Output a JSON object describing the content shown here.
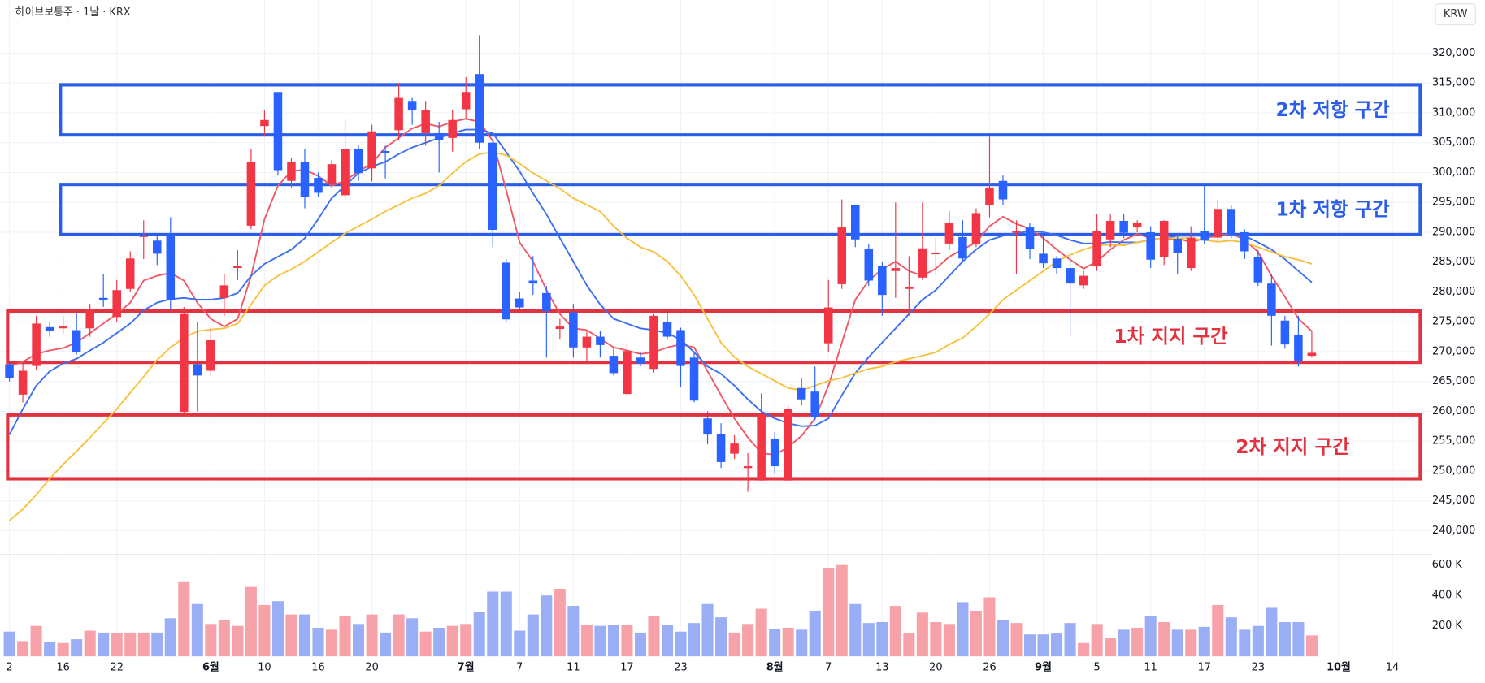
{
  "header": {
    "symbol": "하이브보통주 · 1날 · KRX",
    "currency": "KRW"
  },
  "chart_data": {
    "type": "candlestick",
    "xlim": [
      -0.7,
      106
    ],
    "xticks": [
      {
        "value": 0,
        "label": "2"
      },
      {
        "value": 4,
        "label": "16"
      },
      {
        "value": 8,
        "label": "22"
      },
      {
        "value": 15,
        "label": "6월"
      },
      {
        "value": 19,
        "label": "10"
      },
      {
        "value": 23,
        "label": "16"
      },
      {
        "value": 27,
        "label": "20"
      },
      {
        "value": 34,
        "label": "7월"
      },
      {
        "value": 38,
        "label": "7"
      },
      {
        "value": 42,
        "label": "11"
      },
      {
        "value": 46,
        "label": "17"
      },
      {
        "value": 50,
        "label": "23"
      },
      {
        "value": 57,
        "label": "8월"
      },
      {
        "value": 61,
        "label": "7"
      },
      {
        "value": 65,
        "label": "13"
      },
      {
        "value": 69,
        "label": "20"
      },
      {
        "value": 73,
        "label": "26"
      },
      {
        "value": 77,
        "label": "9월"
      },
      {
        "value": 81,
        "label": "5"
      },
      {
        "value": 85,
        "label": "11"
      },
      {
        "value": 89,
        "label": "17"
      },
      {
        "value": 93,
        "label": "23"
      },
      {
        "value": 99,
        "label": "10월"
      },
      {
        "value": 103,
        "label": "14"
      }
    ],
    "ylim": [
      236000,
      328900
    ],
    "yticks": [
      {
        "value": 240000,
        "label": "240,000"
      },
      {
        "value": 245000,
        "label": "245,000"
      },
      {
        "value": 250000,
        "label": "250,000"
      },
      {
        "value": 255000,
        "label": "255,000"
      },
      {
        "value": 260000,
        "label": "260,000"
      },
      {
        "value": 265000,
        "label": "265,000"
      },
      {
        "value": 270000,
        "label": "270,000"
      },
      {
        "value": 275000,
        "label": "275,000"
      },
      {
        "value": 280000,
        "label": "280,000"
      },
      {
        "value": 285000,
        "label": "285,000"
      },
      {
        "value": 290000,
        "label": "290,000"
      },
      {
        "value": 295000,
        "label": "295,000"
      },
      {
        "value": 300000,
        "label": "300,000"
      },
      {
        "value": 305000,
        "label": "305,000"
      },
      {
        "value": 310000,
        "label": "310,000"
      },
      {
        "value": 315000,
        "label": "315,000"
      },
      {
        "value": 320000,
        "label": "320,000"
      }
    ],
    "grid": true,
    "up_color": "#f23645",
    "down_color": "#2962ff",
    "open": [
      267900,
      262800,
      267600,
      274100,
      273900,
      273600,
      273900,
      279000,
      275800,
      280500,
      289200,
      288600,
      289400,
      259900,
      267900,
      266800,
      279000,
      284000,
      291100,
      307800,
      313500,
      298600,
      301800,
      299100,
      298200,
      296200,
      303900,
      300700,
      303600,
      307100,
      312000,
      306600,
      306600,
      305800,
      310600,
      316500,
      305000,
      284900,
      278900,
      281900,
      279800,
      273800,
      276600,
      270700,
      272500,
      269300,
      262900,
      269000,
      267100,
      274900,
      273600,
      269000,
      258800,
      256200,
      252900,
      250500,
      248400,
      255300,
      248400,
      263900,
      263300,
      271400,
      281300,
      294500,
      287200,
      284300,
      283500,
      280500,
      282400,
      286400,
      288100,
      289200,
      288000,
      294500,
      298600,
      289900,
      290800,
      286400,
      285600,
      284000,
      281100,
      284300,
      288800,
      291900,
      290800,
      290000,
      285900,
      288900,
      284000,
      290200,
      289100,
      293900,
      290000,
      285900,
      281400,
      275200,
      272800,
      269300
    ],
    "high": [
      268500,
      268000,
      276000,
      275000,
      276000,
      276500,
      278000,
      283000,
      282000,
      286800,
      292000,
      289500,
      292500,
      277500,
      275000,
      274000,
      283000,
      287000,
      304000,
      310500,
      313500,
      302500,
      304000,
      300000,
      302000,
      308800,
      304500,
      308000,
      304500,
      315000,
      312500,
      312000,
      308500,
      310500,
      316000,
      323000,
      305500,
      285500,
      280000,
      286000,
      281000,
      275500,
      278000,
      273500,
      273500,
      270500,
      271500,
      270000,
      276300,
      277000,
      274000,
      270000,
      260000,
      258000,
      256000,
      253000,
      263000,
      256500,
      261000,
      265500,
      267500,
      282000,
      295500,
      294500,
      288000,
      285000,
      295000,
      286000,
      295000,
      289000,
      293500,
      292000,
      294000,
      306000,
      299500,
      292000,
      291500,
      289500,
      286000,
      286000,
      283500,
      293000,
      293000,
      293000,
      292000,
      291000,
      292000,
      289500,
      291000,
      298000,
      295500,
      294500,
      290500,
      287000,
      283000,
      276000,
      276000,
      273500
    ],
    "low": [
      265000,
      261500,
      267000,
      272500,
      273000,
      269500,
      272500,
      277500,
      275000,
      280000,
      285500,
      284500,
      277000,
      259500,
      260000,
      266000,
      276000,
      282000,
      290500,
      306000,
      299500,
      297500,
      294000,
      296000,
      297500,
      295500,
      298600,
      298500,
      299000,
      305500,
      308000,
      304500,
      300000,
      303500,
      309000,
      304000,
      287500,
      275000,
      276500,
      279500,
      269000,
      272000,
      269000,
      268500,
      269000,
      266000,
      262500,
      267500,
      266500,
      272000,
      264000,
      261500,
      254500,
      250500,
      252000,
      246500,
      248400,
      249500,
      248400,
      261000,
      258500,
      270000,
      280500,
      287500,
      281000,
      276000,
      279000,
      276000,
      282000,
      283000,
      287000,
      285000,
      287500,
      292500,
      294500,
      283000,
      285500,
      284000,
      283000,
      272500,
      280500,
      283500,
      287500,
      289000,
      290000,
      284000,
      284500,
      283000,
      283500,
      288000,
      288500,
      289000,
      285500,
      281000,
      271000,
      270500,
      267500,
      269000
    ],
    "close": [
      265500,
      266800,
      274700,
      273500,
      274200,
      269900,
      277100,
      278700,
      280300,
      285600,
      289400,
      286400,
      278700,
      276300,
      266000,
      271900,
      281100,
      284300,
      301800,
      308800,
      300400,
      301800,
      295900,
      296600,
      301400,
      303900,
      299900,
      306900,
      303200,
      312500,
      310400,
      310400,
      305500,
      308800,
      313500,
      305000,
      290400,
      275400,
      277400,
      281400,
      276800,
      274200,
      270700,
      272500,
      271100,
      266400,
      270100,
      268000,
      276000,
      272500,
      267600,
      261800,
      256100,
      251500,
      254600,
      250800,
      259400,
      250800,
      260400,
      262000,
      259100,
      277400,
      290800,
      288800,
      281900,
      279500,
      284000,
      280800,
      287300,
      286500,
      291500,
      285600,
      293200,
      297500,
      295500,
      290200,
      287200,
      284800,
      284000,
      281400,
      282700,
      290200,
      291900,
      289900,
      291500,
      285400,
      291900,
      286500,
      289100,
      288600,
      293900,
      289600,
      286800,
      281600,
      276000,
      271200,
      268400,
      269800
    ],
    "lines": [
      {
        "color": "#ef5765",
        "values": [
          267500,
          268300,
          269600,
          270200,
          270600,
          271500,
          273100,
          274700,
          276300,
          278200,
          281900,
          282700,
          283200,
          281900,
          278200,
          275500,
          274200,
          275500,
          282700,
          292200,
          297800,
          300200,
          300500,
          299400,
          297800,
          298600,
          300200,
          301500,
          304200,
          305800,
          307400,
          308200,
          307700,
          308500,
          309000,
          308500,
          305300,
          297000,
          288300,
          285100,
          280300,
          276300,
          273900,
          273600,
          272200,
          270700,
          270200,
          269600,
          269900,
          270700,
          271200,
          270700,
          266700,
          262700,
          258800,
          255600,
          253000,
          252700,
          254000,
          255900,
          258800,
          264300,
          271500,
          278700,
          281900,
          283800,
          285100,
          283500,
          282700,
          283900,
          285900,
          287100,
          288300,
          291000,
          292600,
          291400,
          290600,
          289000,
          287100,
          285400,
          283900,
          285100,
          287100,
          288700,
          289700,
          289000,
          288700,
          289000,
          288300,
          289000,
          289400,
          289800,
          288700,
          286700,
          282700,
          279200,
          275500,
          273400
        ]
      },
      {
        "color": "#3b6ef0",
        "values": [
          256100,
          260400,
          264300,
          266700,
          268000,
          268800,
          270200,
          271500,
          273100,
          274700,
          276900,
          278200,
          278800,
          279000,
          278700,
          278700,
          279000,
          279800,
          282700,
          284700,
          285900,
          287100,
          289000,
          292200,
          295700,
          297800,
          299900,
          301000,
          301800,
          303100,
          304200,
          305000,
          305800,
          306600,
          307200,
          307200,
          306600,
          303400,
          300200,
          296500,
          293000,
          289000,
          285100,
          281100,
          277900,
          275500,
          274700,
          273900,
          273600,
          273100,
          272000,
          269900,
          267500,
          266300,
          264300,
          262000,
          260000,
          258800,
          258000,
          257500,
          257600,
          258800,
          262700,
          266400,
          269100,
          271500,
          273900,
          276300,
          278700,
          280300,
          282700,
          285100,
          287100,
          288700,
          289400,
          289800,
          290200,
          290000,
          289500,
          288700,
          288100,
          288100,
          288400,
          288300,
          288300,
          288700,
          289000,
          289400,
          289400,
          289400,
          289400,
          289500,
          289400,
          288300,
          287100,
          285500,
          283500,
          281600
        ]
      },
      {
        "color": "#f6c23e",
        "values": [
          241700,
          243600,
          246000,
          248700,
          251100,
          253300,
          255600,
          258000,
          260400,
          263100,
          265800,
          268600,
          270700,
          272300,
          273400,
          273700,
          273900,
          274700,
          277900,
          281100,
          282700,
          283800,
          285100,
          286700,
          288300,
          289800,
          291000,
          292200,
          293500,
          294600,
          295700,
          296500,
          297800,
          299900,
          301800,
          303100,
          303400,
          302900,
          301500,
          299900,
          298600,
          297300,
          295700,
          294600,
          293500,
          291000,
          289000,
          287500,
          286700,
          285100,
          282700,
          279500,
          275500,
          271500,
          269100,
          267500,
          266300,
          265100,
          263900,
          263500,
          264300,
          265100,
          265600,
          266400,
          267100,
          267500,
          268300,
          268800,
          269300,
          269900,
          271200,
          272300,
          274200,
          276300,
          278700,
          280300,
          281900,
          283500,
          285100,
          286200,
          287100,
          287800,
          287900,
          287800,
          288300,
          288700,
          289000,
          289000,
          289000,
          288700,
          288400,
          288600,
          288300,
          287500,
          286700,
          285900,
          285400,
          284700
        ]
      }
    ],
    "volume": {
      "ylim": [
        0,
        668750
      ],
      "yticks": [
        {
          "value": 200000,
          "label": "200 K"
        },
        {
          "value": 400000,
          "label": "400 K"
        },
        {
          "value": 600000,
          "label": "600 K"
        }
      ],
      "up_color": "#f7a1a9",
      "down_color": "#9aaef6",
      "values": [
        162500,
        100000,
        200000,
        93750,
        87500,
        112500,
        168750,
        156250,
        150000,
        156250,
        156250,
        156250,
        250000,
        487500,
        343750,
        212500,
        237500,
        200000,
        456250,
        337500,
        362500,
        275000,
        275000,
        187500,
        175000,
        262500,
        212500,
        275000,
        156250,
        275000,
        250000,
        162500,
        187500,
        200000,
        212500,
        293750,
        425000,
        425000,
        168750,
        275000,
        400000,
        443750,
        331250,
        206250,
        200000,
        206250,
        206250,
        156250,
        262500,
        206250,
        162500,
        218750,
        343750,
        256250,
        156250,
        212500,
        312500,
        181250,
        187500,
        175000,
        300000,
        581250,
        600000,
        343750,
        218750,
        225000,
        331250,
        150000,
        287500,
        225000,
        212500,
        356250,
        300000,
        387500,
        237500,
        218750,
        143750,
        143750,
        150000,
        218750,
        87500,
        212500,
        118750,
        175000,
        187500,
        262500,
        225000,
        175000,
        175000,
        193750,
        337500,
        256250,
        175000,
        200000,
        318750,
        225000,
        225000,
        137500
      ]
    },
    "zones": [
      {
        "label": "2차 저항 구간",
        "color": "#2a5ee8",
        "range": [
          306300,
          314700
        ],
        "x_start": 3.8
      },
      {
        "label": "1차 저항 구간",
        "color": "#2a5ee8",
        "range": [
          289600,
          298000
        ],
        "x_start": 3.8
      },
      {
        "label": "1차 지지 구간",
        "color": "#e2323f",
        "range": [
          268200,
          276800
        ],
        "x_start": -0.7
      },
      {
        "label": "2차 지지 구간",
        "color": "#e2323f",
        "range": [
          248700,
          259400
        ],
        "x_start": -0.7
      }
    ]
  }
}
